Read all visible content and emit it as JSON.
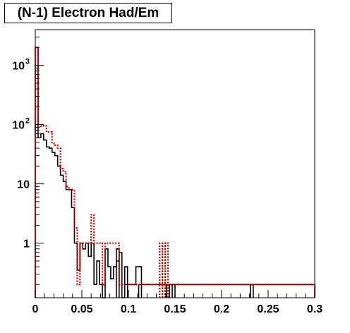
{
  "title": "(N-1) Electron Had/Em",
  "chart_data": {
    "type": "histogram",
    "title": "(N-1) Electron Had/Em",
    "xlabel": "",
    "ylabel": "",
    "xlim": [
      0,
      0.3
    ],
    "ylim": [
      0.12,
      4000
    ],
    "log_y": true,
    "grid": false,
    "bin_width": 0.003,
    "x_ticks": [
      {
        "value": 0,
        "label": "0"
      },
      {
        "value": 0.05,
        "label": "0.05"
      },
      {
        "value": 0.1,
        "label": "0.1"
      },
      {
        "value": 0.15,
        "label": "0.15"
      },
      {
        "value": 0.2,
        "label": "0.2"
      },
      {
        "value": 0.25,
        "label": "0.25"
      },
      {
        "value": 0.3,
        "label": "0.3"
      }
    ],
    "y_ticks": [
      {
        "value": 1,
        "base": "1",
        "exp": ""
      },
      {
        "value": 10,
        "base": "10",
        "exp": ""
      },
      {
        "value": 100,
        "base": "10",
        "exp": "2"
      },
      {
        "value": 1000,
        "base": "10",
        "exp": "3"
      }
    ],
    "series": [
      {
        "color": "#000000",
        "style": "solid",
        "values": [
          2000,
          60,
          70,
          55,
          42,
          40,
          34,
          30,
          20,
          14,
          11,
          8,
          8,
          4,
          1,
          0.35,
          1,
          0.8,
          1,
          0.6,
          1,
          0.2,
          0.5,
          0.2,
          0,
          0.8,
          0.4,
          0.25,
          0.4,
          0.5,
          0.7,
          0,
          0.4,
          0.2,
          0.2,
          0.2,
          0.4,
          0.4,
          0.2,
          0.2,
          0.2,
          0.2,
          0.2,
          0.2,
          0.2,
          0.2,
          0.2,
          0.2,
          0.2,
          0.2,
          0.2,
          0.2,
          0.2,
          0.2,
          0.2,
          0.2,
          0.2,
          0.2,
          0.2,
          0.2,
          0.2,
          0.2,
          0.2,
          0.2,
          0.2,
          0.2,
          0.2,
          0.2,
          0.2,
          0.2,
          0.2,
          0.2,
          0.2,
          0.2,
          0.2,
          0.2,
          0.2,
          0.2,
          0.2,
          0.2,
          0.2,
          0.2,
          0.2,
          0.2,
          0.2,
          0.2,
          0.2,
          0.2,
          0.2,
          0.2,
          0.2,
          0.2,
          0.2,
          0.2,
          0.2,
          0.2,
          0.2,
          0.2,
          0.2,
          0.2
        ],
        "extra_spikes": [
          {
            "x": 0.087,
            "value": 0.8
          },
          {
            "x": 0.096,
            "value": 0.2
          },
          {
            "x": 0.111,
            "value": 0.2
          },
          {
            "x": 0.141,
            "value": 0.2
          },
          {
            "x": 0.147,
            "value": 0.2
          },
          {
            "x": 0.231,
            "value": 0.2
          }
        ]
      },
      {
        "color": "#dd0000",
        "style": "dotted",
        "values": [
          2000,
          90,
          100,
          95,
          75,
          75,
          48,
          45,
          40,
          18,
          16,
          9,
          8,
          8,
          1.8,
          0.2,
          1,
          1,
          1,
          1,
          3,
          1,
          1,
          1,
          0.2,
          1,
          1,
          1,
          1,
          1,
          0.2,
          0.2,
          0.2,
          0.2,
          0.2,
          0.2,
          0.2,
          0.2,
          0.2,
          0.2,
          0.2,
          0.2,
          0.2,
          0.2,
          0.2,
          0.2,
          0.2,
          0.2,
          0.2,
          0.2,
          0.2,
          0.2,
          0.2,
          0.2,
          0.2,
          0.2,
          0.2,
          0.2,
          0.2,
          0.2,
          0.2,
          0.2,
          0.2,
          0.2,
          0.2,
          0.2,
          0.2,
          0.2,
          0.2,
          0.2,
          0.2,
          0.2,
          0.2,
          0.2,
          0.2,
          0.2,
          0.2,
          0.2,
          0.2,
          0.2,
          0.2,
          0.2,
          0.2,
          0.2,
          0.2,
          0.2,
          0.2,
          0.2,
          0.2,
          0.2,
          0.2,
          0.2,
          0.2,
          0.2,
          0.2,
          0.2,
          0.2,
          0.2,
          0.2,
          0.2
        ],
        "extra_spikes": [
          {
            "x": 0.1335,
            "value": 1
          },
          {
            "x": 0.1365,
            "value": 1
          },
          {
            "x": 0.1395,
            "value": 1
          }
        ]
      }
    ]
  }
}
